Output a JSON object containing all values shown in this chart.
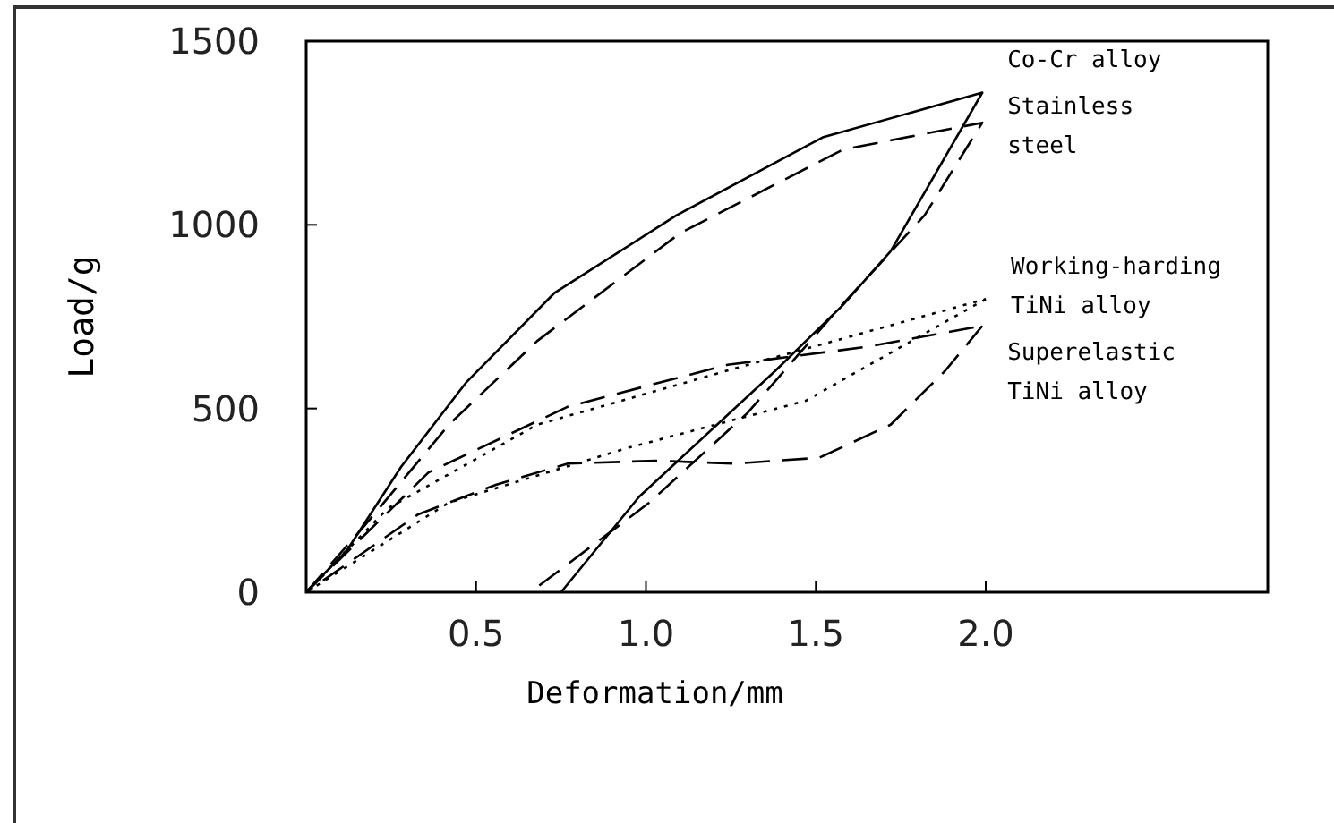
{
  "chart_data": {
    "type": "line",
    "xlabel": "Deformation/mm",
    "ylabel": "Load/g",
    "xlim": [
      0,
      2.83
    ],
    "xticks": [
      0.5,
      {
        "value": 1,
        "label": "1.0"
      },
      1.5,
      {
        "value": 2,
        "label": "2.0"
      }
    ],
    "ylim": [
      0,
      1500
    ],
    "yticks": [
      0,
      500,
      1000,
      1500
    ],
    "grid": false,
    "legend": false,
    "marker": "none",
    "series": [
      {
        "name": "Co-Cr alloy",
        "color": "#000000",
        "line_style": "solid",
        "x": [
          0,
          0.12,
          0.28,
          0.47,
          0.73,
          1.09,
          1.52,
          1.99,
          1.72,
          1.58,
          1.38,
          0.98,
          0.75
        ],
        "values": [
          0,
          114,
          342,
          570,
          814,
          1026,
          1238,
          1360,
          928,
          782,
          602,
          260,
          0
        ]
      },
      {
        "name": "Stainless steel",
        "color": "#000000",
        "line_style": "dashed",
        "x": [
          0,
          0.17,
          0.42,
          0.68,
          1.1,
          1.58,
          1.99,
          1.82,
          1.56,
          1.3,
          1.01,
          0.66
        ],
        "values": [
          0,
          179,
          456,
          684,
          977,
          1205,
          1278,
          1026,
          765,
          489,
          244,
          0
        ]
      },
      {
        "name": "Working-harding TiNi alloy",
        "color": "#000000",
        "line_style": "dotted",
        "x": [
          0,
          0.24,
          0.68,
          1.3,
          2.0
        ],
        "values": [
          0,
          228,
          456,
          619,
          798
        ]
      },
      {
        "color": "#000000",
        "line_style": "dotted",
        "x": [
          2.0,
          1.47,
          0.94,
          0.42,
          0
        ],
        "values": [
          798,
          521,
          391,
          244,
          0
        ]
      },
      {
        "name": "Superelastic TiNi alloy",
        "color": "#000000",
        "line_style": "dashed",
        "x": [
          0,
          0.36,
          0.77,
          1.24,
          1.65,
          1.99
        ],
        "values": [
          0,
          326,
          505,
          619,
          668,
          725
        ]
      },
      {
        "color": "#000000",
        "line_style": "dashed",
        "x": [
          1.99,
          1.88,
          1.72,
          1.51,
          1.26,
          1.03,
          0.77,
          0.56,
          0.33,
          0
        ],
        "values": [
          725,
          602,
          456,
          366,
          350,
          358,
          350,
          293,
          212,
          0
        ]
      }
    ]
  }
}
